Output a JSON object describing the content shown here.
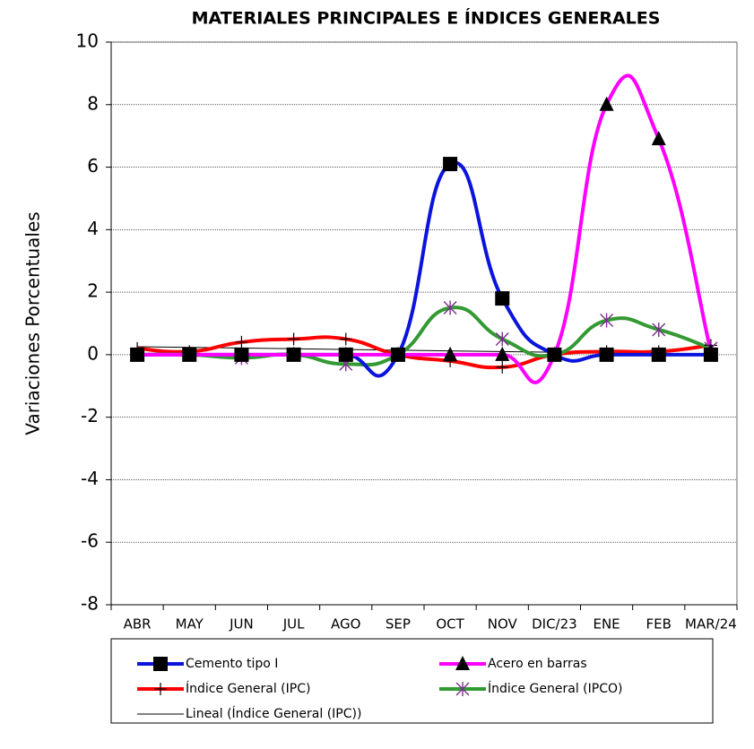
{
  "chart_data": {
    "type": "line",
    "title": "MATERIALES PRINCIPALES E ÍNDICES GENERALES",
    "y_label": "Variaciones Porcentuales",
    "categories": [
      "ABR",
      "MAY",
      "JUN",
      "JUL",
      "AGO",
      "SEP",
      "OCT",
      "NOV",
      "DIC/23",
      "ENE",
      "FEB",
      "MAR/24"
    ],
    "series": [
      {
        "name": "Cemento tipo I",
        "color": "#0a14dc",
        "marker": "square",
        "values": [
          0,
          0,
          0,
          0,
          0,
          0,
          6.1,
          1.8,
          0,
          0,
          0,
          0
        ]
      },
      {
        "name": "Acero en barras",
        "color": "#ff00ff",
        "marker": "triangle",
        "values": [
          0,
          0,
          0,
          0,
          0,
          0,
          0,
          0,
          0,
          8,
          6.9,
          0.1
        ]
      },
      {
        "name": "Índice General (IPC)",
        "color": "#ff0000",
        "marker": "plus",
        "values": [
          0.2,
          0.1,
          0.4,
          0.5,
          0.5,
          0,
          -0.2,
          -0.4,
          0,
          0.1,
          0.1,
          0.3
        ]
      },
      {
        "name": "Índice General (IPCO)",
        "color": "#339933",
        "marker": "star",
        "values": [
          0,
          0,
          -0.1,
          0,
          -0.3,
          0,
          1.5,
          0.5,
          0,
          1.1,
          0.8,
          0.2
        ]
      }
    ],
    "trendline": {
      "name": "Lineal (Índice General (IPC))",
      "color": "#000000",
      "of_series": 2
    },
    "ylim": [
      -8,
      10
    ],
    "yticks": [
      -8,
      -6,
      -4,
      -2,
      0,
      2,
      4,
      6,
      8,
      10
    ],
    "grid": true,
    "smooth": true,
    "legend": "bottom"
  }
}
